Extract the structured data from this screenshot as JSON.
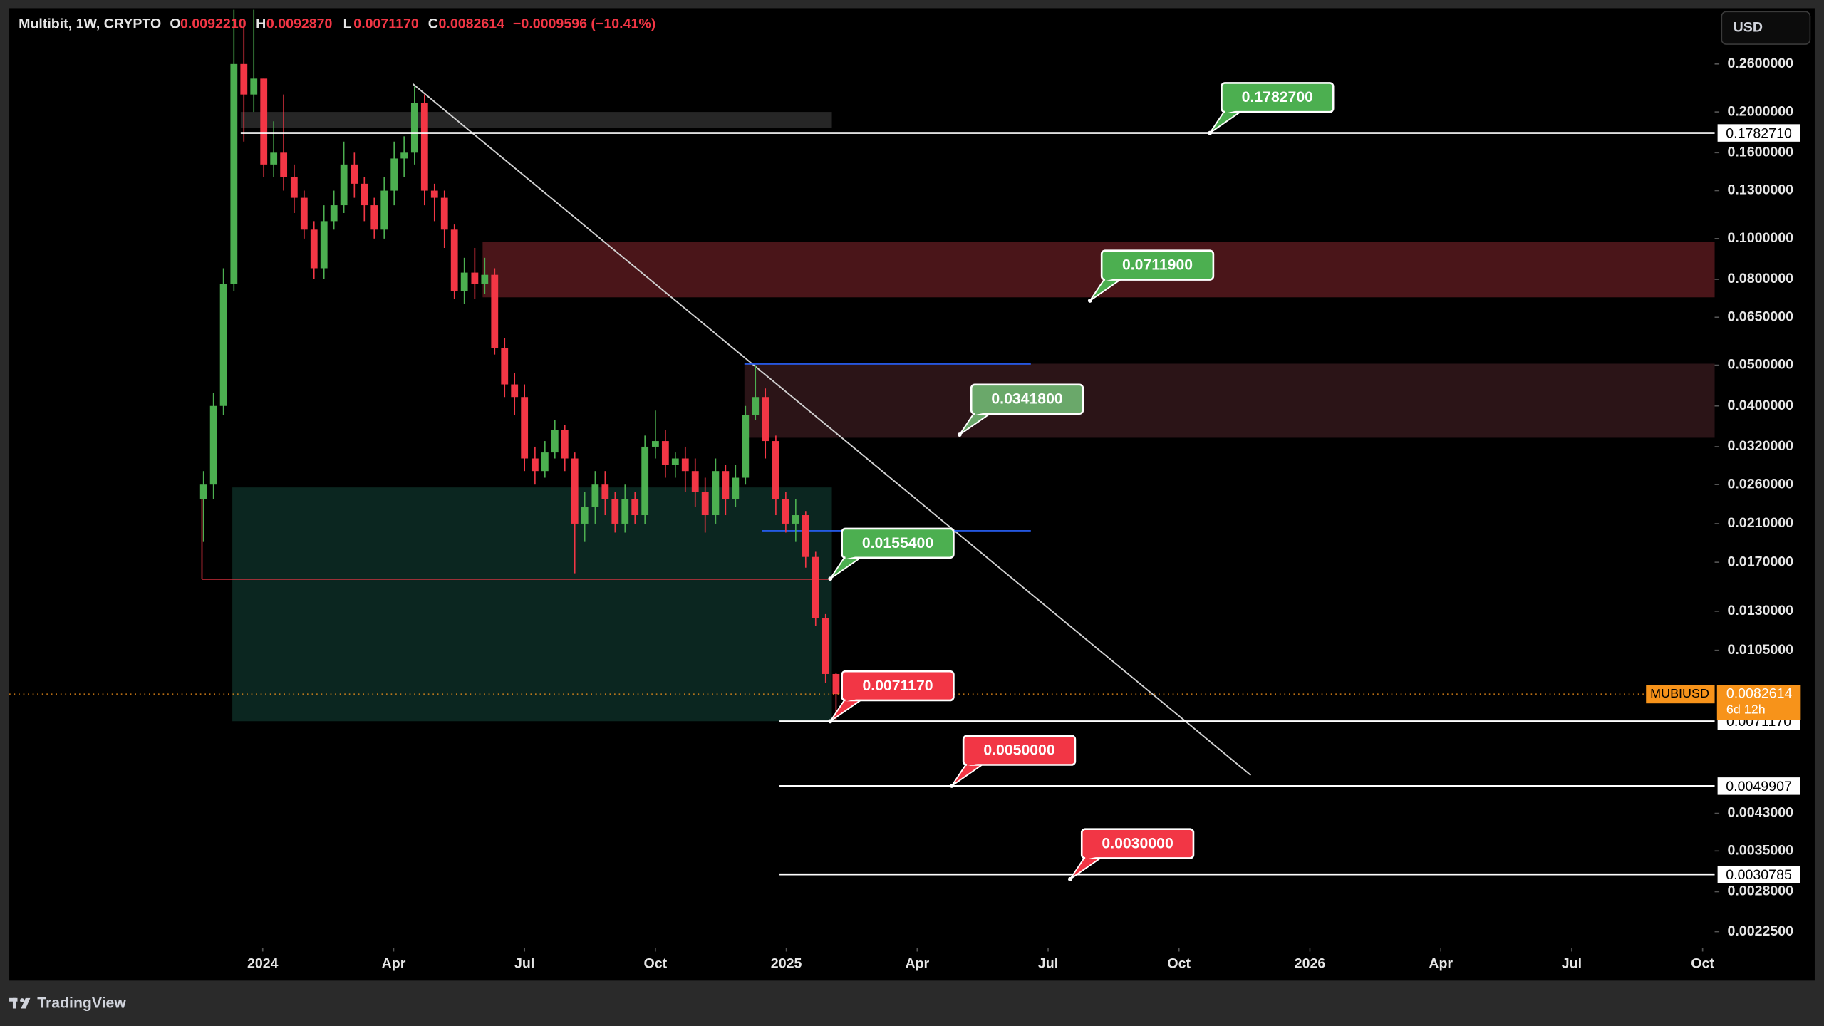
{
  "header": {
    "title": "Multibit, 1W, CRYPTO",
    "fields": [
      {
        "key": "O",
        "value": "0.0092210"
      },
      {
        "key": "H",
        "value": "0.0092870"
      },
      {
        "key": "L",
        "value": "0.0071170"
      },
      {
        "key": "C",
        "value": "0.0082614"
      }
    ],
    "change": "−0.0009596 (−10.41%)",
    "currency": "USD",
    "brand": "TradingView"
  },
  "chart_data": {
    "type": "candlestick",
    "log_scale": true,
    "grid": false,
    "xlim": [
      2023.516,
      2026.773
    ],
    "xticks": [
      {
        "value": 2024,
        "label": "2024"
      },
      {
        "value": 2024.25,
        "label": "Apr"
      },
      {
        "value": 2024.5,
        "label": "Jul"
      },
      {
        "value": 2024.75,
        "label": "Oct"
      },
      {
        "value": 2025,
        "label": "2025"
      },
      {
        "value": 2025.25,
        "label": "Apr"
      },
      {
        "value": 2025.5,
        "label": "Jul"
      },
      {
        "value": 2025.75,
        "label": "Oct"
      },
      {
        "value": 2026,
        "label": "2026"
      },
      {
        "value": 2026.25,
        "label": "Apr"
      },
      {
        "value": 2026.5,
        "label": "Jul"
      },
      {
        "value": 2026.75,
        "label": "Oct"
      }
    ],
    "ylim": [
      0.002057,
      0.353
    ],
    "yticks": [
      {
        "value": 0.26,
        "label": "0.2600000"
      },
      {
        "value": 0.2,
        "label": "0.2000000"
      },
      {
        "value": 0.16,
        "label": "0.1600000"
      },
      {
        "value": 0.13,
        "label": "0.1300000"
      },
      {
        "value": 0.1,
        "label": "0.1000000"
      },
      {
        "value": 0.08,
        "label": "0.0800000"
      },
      {
        "value": 0.065,
        "label": "0.0650000"
      },
      {
        "value": 0.05,
        "label": "0.0500000"
      },
      {
        "value": 0.04,
        "label": "0.0400000"
      },
      {
        "value": 0.032,
        "label": "0.0320000"
      },
      {
        "value": 0.026,
        "label": "0.0260000"
      },
      {
        "value": 0.021,
        "label": "0.0210000"
      },
      {
        "value": 0.017,
        "label": "0.0170000"
      },
      {
        "value": 0.013,
        "label": "0.0130000"
      },
      {
        "value": 0.0105,
        "label": "0.0105000"
      },
      {
        "value": 0.0043,
        "label": "0.0043000"
      },
      {
        "value": 0.0035,
        "label": "0.0035000"
      },
      {
        "value": 0.0028,
        "label": "0.0028000"
      },
      {
        "value": 0.00225,
        "label": "0.0022500"
      }
    ],
    "x": [
      2023.887,
      2023.906,
      2023.925,
      2023.945,
      2023.964,
      2023.983,
      2024.002,
      2024.021,
      2024.04,
      2024.06,
      2024.079,
      2024.098,
      2024.117,
      2024.136,
      2024.155,
      2024.175,
      2024.194,
      2024.213,
      2024.232,
      2024.251,
      2024.27,
      2024.29,
      2024.309,
      2024.328,
      2024.347,
      2024.366,
      2024.385,
      2024.405,
      2024.424,
      2024.443,
      2024.462,
      2024.481,
      2024.5,
      2024.52,
      2024.539,
      2024.558,
      2024.577,
      2024.596,
      2024.615,
      2024.635,
      2024.654,
      2024.673,
      2024.692,
      2024.711,
      2024.73,
      2024.75,
      2024.769,
      2024.788,
      2024.807,
      2024.826,
      2024.845,
      2024.865,
      2024.884,
      2024.903,
      2024.922,
      2024.941,
      2024.96,
      2024.98,
      2024.999,
      2025.018,
      2025.037,
      2025.056,
      2025.075,
      2025.095
    ],
    "series": [
      {
        "name": "MUBIUSD",
        "up_color": "#4caf50",
        "down_color": "#f23645",
        "price_label": "0.0082614",
        "countdown": "6d 12h",
        "tag_color": "#f7931a",
        "open": [
          0.024,
          0.026,
          0.04,
          0.078,
          0.26,
          0.22,
          0.24,
          0.15,
          0.16,
          0.14,
          0.125,
          0.105,
          0.085,
          0.11,
          0.12,
          0.15,
          0.135,
          0.12,
          0.105,
          0.13,
          0.155,
          0.16,
          0.21,
          0.13,
          0.125,
          0.105,
          0.075,
          0.083,
          0.078,
          0.082,
          0.055,
          0.045,
          0.042,
          0.03,
          0.028,
          0.031,
          0.035,
          0.03,
          0.021,
          0.023,
          0.026,
          0.024,
          0.021,
          0.024,
          0.022,
          0.032,
          0.033,
          0.029,
          0.03,
          0.028,
          0.025,
          0.022,
          0.028,
          0.024,
          0.027,
          0.038,
          0.042,
          0.033,
          0.024,
          0.021,
          0.022,
          0.0175,
          0.0125,
          0.009221
        ],
        "high": [
          0.028,
          0.043,
          0.085,
          0.35,
          0.33,
          0.35,
          0.24,
          0.19,
          0.22,
          0.15,
          0.13,
          0.11,
          0.12,
          0.13,
          0.17,
          0.16,
          0.14,
          0.125,
          0.14,
          0.17,
          0.175,
          0.23,
          0.22,
          0.135,
          0.13,
          0.108,
          0.09,
          0.095,
          0.09,
          0.085,
          0.058,
          0.048,
          0.045,
          0.032,
          0.033,
          0.037,
          0.036,
          0.031,
          0.025,
          0.028,
          0.028,
          0.025,
          0.026,
          0.025,
          0.034,
          0.039,
          0.035,
          0.031,
          0.032,
          0.03,
          0.027,
          0.03,
          0.029,
          0.029,
          0.04,
          0.05,
          0.044,
          0.034,
          0.025,
          0.024,
          0.0225,
          0.018,
          0.0128,
          0.009287
        ],
        "low": [
          0.019,
          0.024,
          0.038,
          0.075,
          0.17,
          0.2,
          0.14,
          0.14,
          0.13,
          0.115,
          0.1,
          0.08,
          0.08,
          0.105,
          0.115,
          0.125,
          0.11,
          0.1,
          0.1,
          0.12,
          0.14,
          0.15,
          0.12,
          0.11,
          0.095,
          0.072,
          0.07,
          0.072,
          0.074,
          0.053,
          0.042,
          0.038,
          0.028,
          0.026,
          0.027,
          0.03,
          0.028,
          0.016,
          0.019,
          0.021,
          0.022,
          0.02,
          0.02,
          0.021,
          0.021,
          0.03,
          0.027,
          0.027,
          0.025,
          0.023,
          0.02,
          0.021,
          0.022,
          0.023,
          0.026,
          0.037,
          0.03,
          0.022,
          0.02,
          0.019,
          0.0165,
          0.012,
          0.0088,
          0.007117
        ],
        "close": [
          0.026,
          0.04,
          0.078,
          0.26,
          0.22,
          0.24,
          0.15,
          0.16,
          0.14,
          0.125,
          0.105,
          0.085,
          0.11,
          0.12,
          0.15,
          0.135,
          0.12,
          0.105,
          0.13,
          0.155,
          0.16,
          0.21,
          0.13,
          0.125,
          0.105,
          0.075,
          0.083,
          0.078,
          0.082,
          0.055,
          0.045,
          0.042,
          0.03,
          0.028,
          0.031,
          0.035,
          0.03,
          0.021,
          0.023,
          0.026,
          0.024,
          0.021,
          0.024,
          0.022,
          0.032,
          0.033,
          0.029,
          0.03,
          0.028,
          0.025,
          0.022,
          0.028,
          0.024,
          0.027,
          0.038,
          0.042,
          0.033,
          0.024,
          0.021,
          0.022,
          0.0175,
          0.0125,
          0.009221,
          0.0082614
        ]
      }
    ],
    "zones": [
      {
        "from": 2023.958,
        "to": 2025.087,
        "high": 0.2,
        "low": 0.183,
        "color": "#262626"
      },
      {
        "from": 2024.42,
        "to": 2026.773,
        "high": 0.098,
        "low": 0.0725,
        "color": "#4a1519"
      },
      {
        "from": 2024.92,
        "to": 2026.773,
        "high": 0.0504,
        "low": 0.0336,
        "color": "#2b1417"
      },
      {
        "from": 2023.942,
        "to": 2025.087,
        "high": 0.0256,
        "low": 0.00712,
        "color": "#0b2620"
      }
    ],
    "lines": [
      {
        "x": [
          2024.287,
          2025.887
        ],
        "y": [
          0.233,
          0.0053
        ],
        "color": "#d0d0d0",
        "width": 1.2
      },
      {
        "x": [
          2024.92,
          2025.467
        ],
        "y": [
          0.0503,
          0.0503
        ],
        "color": "#2962ff",
        "width": 1
      },
      {
        "x": [
          2024.953,
          2025.467
        ],
        "y": [
          0.0202,
          0.0202
        ],
        "color": "#2962ff",
        "width": 1
      },
      {
        "x": [
          2023.884,
          2025.087
        ],
        "y": [
          0.0155,
          0.0155
        ],
        "color": "#f23645",
        "width": 1
      },
      {
        "x": [
          2023.884,
          2023.884
        ],
        "y": [
          0.0256,
          0.0155
        ],
        "color": "#f23645",
        "width": 1
      }
    ],
    "levels": [
      {
        "value": 0.178271,
        "label": "0.1782710",
        "from": 2023.958
      },
      {
        "value": 0.007117,
        "label": "0.0071170",
        "from": 2024.987
      },
      {
        "value": 0.0049907,
        "label": "0.0049907",
        "from": 2024.987
      },
      {
        "value": 0.0030785,
        "label": "0.0030785",
        "from": 2024.987
      }
    ],
    "callouts": [
      {
        "value": 0.17827,
        "label": "0.1782700",
        "x": 2025.809,
        "color": "#4caf50"
      },
      {
        "value": 0.07119,
        "label": "0.0711900",
        "x": 2025.58,
        "color": "#4caf50"
      },
      {
        "value": 0.03418,
        "label": "0.0341800",
        "x": 2025.331,
        "color": "#6aa86a"
      },
      {
        "value": 0.01554,
        "label": "0.0155400",
        "x": 2025.084,
        "color": "#4caf50"
      },
      {
        "value": 0.007117,
        "label": "0.0071170",
        "x": 2025.084,
        "color": "#f23645"
      },
      {
        "value": 0.005,
        "label": "0.0050000",
        "x": 2025.316,
        "color": "#f23645"
      },
      {
        "value": 0.003,
        "label": "0.0030000",
        "x": 2025.542,
        "color": "#f23645"
      }
    ]
  }
}
